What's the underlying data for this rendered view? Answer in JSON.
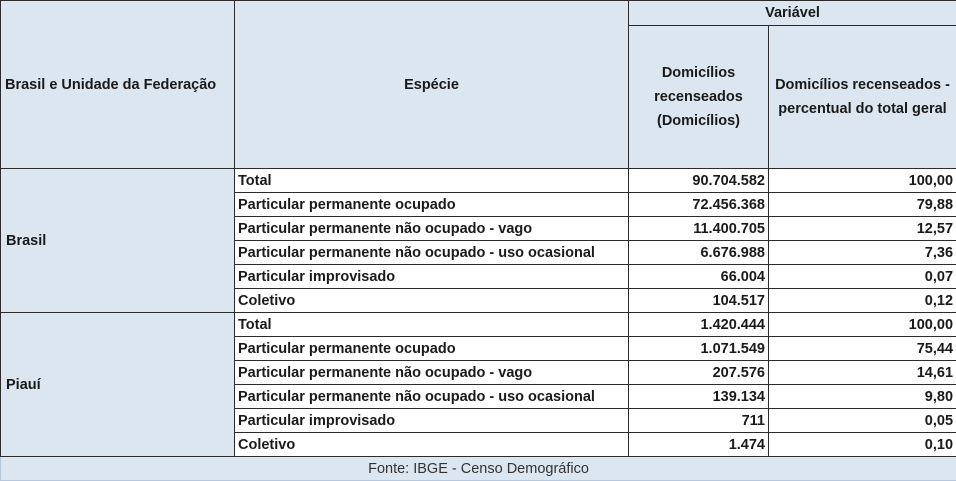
{
  "header": {
    "col_location": "Brasil e Unidade da Federação",
    "col_species": "Espécie",
    "variable": "Variável",
    "col_households": "Domicílios recenseados (Domicílios)",
    "col_percent": "Domicílios recenseados - percentual do total geral"
  },
  "groups": [
    {
      "name": "Brasil",
      "rows": [
        {
          "species": "Total",
          "households": "90.704.582",
          "percent": "100,00"
        },
        {
          "species": "Particular permanente ocupado",
          "households": "72.456.368",
          "percent": "79,88"
        },
        {
          "species": "Particular permanente não ocupado - vago",
          "households": "11.400.705",
          "percent": "12,57"
        },
        {
          "species": "Particular permanente não ocupado - uso ocasional",
          "households": "6.676.988",
          "percent": "7,36"
        },
        {
          "species": "Particular improvisado",
          "households": "66.004",
          "percent": "0,07"
        },
        {
          "species": "Coletivo",
          "households": "104.517",
          "percent": "0,12"
        }
      ]
    },
    {
      "name": "Piauí",
      "rows": [
        {
          "species": "Total",
          "households": "1.420.444",
          "percent": "100,00"
        },
        {
          "species": "Particular permanente ocupado",
          "households": "1.071.549",
          "percent": "75,44"
        },
        {
          "species": "Particular permanente não ocupado - vago",
          "households": "207.576",
          "percent": "14,61"
        },
        {
          "species": "Particular permanente não ocupado - uso ocasional",
          "households": "139.134",
          "percent": "9,80"
        },
        {
          "species": "Particular improvisado",
          "households": "711",
          "percent": "0,05"
        },
        {
          "species": "Coletivo",
          "households": "1.474",
          "percent": "0,10"
        }
      ]
    }
  ],
  "footer": {
    "source": "Fonte: IBGE - Censo Demográfico"
  }
}
